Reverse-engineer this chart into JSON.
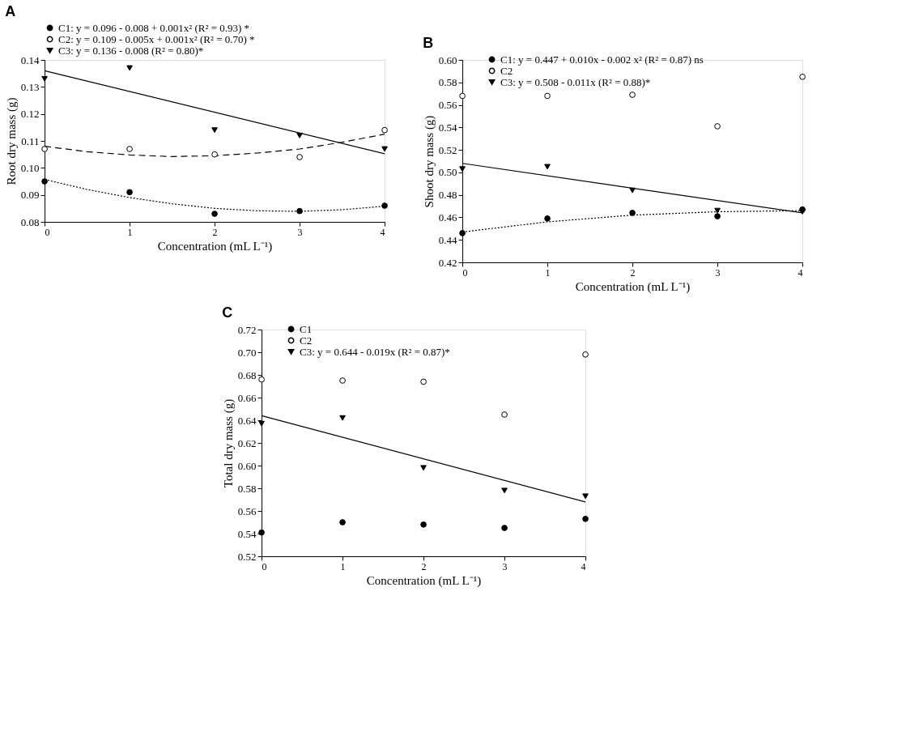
{
  "chart_data": [
    {
      "type": "scatter",
      "title": "A",
      "xlabel": "Concentration (mL L⁻¹)",
      "ylabel": "Root dry mass (g)",
      "x": [
        0,
        1,
        2,
        3,
        4
      ],
      "xlim": [
        0,
        4
      ],
      "xticks": [
        0,
        1,
        2,
        3,
        4
      ],
      "ylim": [
        0.08,
        0.14
      ],
      "yticks": [
        0.08,
        0.09,
        {
          "value": 0.1,
          "label": "0.10"
        },
        0.11,
        0.12,
        0.13,
        0.14
      ],
      "grid": false,
      "legend": "top",
      "series": [
        {
          "name": "C1: y = 0.096 - 0.008 + 0.001x² (R² = 0.93) *",
          "color": "#000000",
          "marker": "circle",
          "values": [
            0.095,
            0.091,
            0.083,
            0.084,
            0.086
          ]
        },
        {
          "name": "C2: y = 0.109 - 0.005x + 0.001x² (R² = 0.70) *",
          "color": "#ffffff",
          "marker": "circle",
          "values": [
            0.107,
            0.107,
            0.105,
            0.104,
            0.114
          ]
        },
        {
          "name": "C3: y = 0.136 - 0.008 (R² = 0.80)*",
          "color": "#000000",
          "marker": "triangle",
          "values": [
            0.133,
            0.137,
            0.114,
            0.112,
            0.107
          ]
        },
        {
          "type": "line",
          "color": "#000000",
          "line_style": "dotted",
          "x": [
            0,
            0.5,
            1,
            1.5,
            2,
            2.5,
            3,
            3.5,
            4
          ],
          "values": [
            0.0957,
            0.092,
            0.089,
            0.0867,
            0.085,
            0.0841,
            0.0839,
            0.0845,
            0.0858
          ]
        },
        {
          "type": "line",
          "color": "#000000",
          "line_style": "dashed",
          "x": [
            0,
            0.5,
            1,
            1.5,
            2,
            2.5,
            3,
            3.5,
            4
          ],
          "values": [
            0.108,
            0.106,
            0.1048,
            0.1042,
            0.1045,
            0.1055,
            0.107,
            0.1095,
            0.1125
          ]
        },
        {
          "type": "line",
          "color": "#000000",
          "line_style": "solid",
          "x": [
            0,
            4
          ],
          "values": [
            0.136,
            0.1052
          ]
        }
      ]
    },
    {
      "type": "scatter",
      "title": "B",
      "xlabel": "Concentration (mL L⁻¹)",
      "ylabel": "Shoot dry mass (g)",
      "x": [
        0,
        1,
        2,
        3,
        4
      ],
      "xlim": [
        0,
        4
      ],
      "xticks": [
        0,
        1,
        2,
        3,
        4
      ],
      "ylim": [
        0.42,
        0.6
      ],
      "yticks": [
        0.42,
        0.44,
        0.46,
        0.48,
        {
          "value": 0.5,
          "label": "0.50"
        },
        0.52,
        0.54,
        0.56,
        0.58,
        {
          "value": 0.6,
          "label": "0.60"
        }
      ],
      "grid": false,
      "legend": "top left",
      "series": [
        {
          "name": "C1: y = 0.447 + 0.010x - 0.002 x² (R² = 0.87) ns",
          "color": "#000000",
          "marker": "circle",
          "values": [
            0.446,
            0.459,
            0.464,
            0.461,
            0.467
          ]
        },
        {
          "name": "C2",
          "color": "#ffffff",
          "marker": "circle",
          "values": [
            0.568,
            0.568,
            0.569,
            0.541,
            0.585
          ]
        },
        {
          "name": "C3: y = 0.508 - 0.011x (R² = 0.88)*",
          "color": "#000000",
          "marker": "triangle",
          "values": [
            0.503,
            0.505,
            0.484,
            0.466,
            0.465
          ]
        },
        {
          "type": "line",
          "color": "#000000",
          "line_style": "dotted",
          "x": [
            0,
            1,
            2,
            3,
            4
          ],
          "values": [
            0.447,
            0.456,
            0.462,
            0.465,
            0.466
          ]
        },
        {
          "type": "line",
          "color": "#000000",
          "line_style": "solid",
          "x": [
            0,
            4
          ],
          "values": [
            0.508,
            0.464
          ]
        }
      ]
    },
    {
      "type": "scatter",
      "title": "C",
      "xlabel": "Concentration (mL L⁻¹)",
      "ylabel": "Total dry mass (g)",
      "x": [
        0,
        1,
        2,
        3,
        4
      ],
      "xlim": [
        0,
        4
      ],
      "xticks": [
        0,
        1,
        2,
        3,
        4
      ],
      "ylim": [
        0.52,
        0.72
      ],
      "yticks": [
        0.52,
        0.54,
        0.56,
        0.58,
        {
          "value": 0.6,
          "label": "0.60"
        },
        0.62,
        0.64,
        0.66,
        0.68,
        {
          "value": 0.7,
          "label": "0.70"
        },
        0.72
      ],
      "grid": false,
      "legend": "top left",
      "series": [
        {
          "name": "C1",
          "color": "#000000",
          "marker": "circle",
          "values": [
            0.541,
            0.55,
            0.548,
            0.545,
            0.553
          ]
        },
        {
          "name": "C2",
          "color": "#ffffff",
          "marker": "circle",
          "values": [
            0.676,
            0.675,
            0.674,
            0.645,
            0.698
          ]
        },
        {
          "name": "C3: y = 0.644 - 0.019x (R² = 0.87)*",
          "color": "#000000",
          "marker": "triangle",
          "values": [
            0.637,
            0.642,
            0.598,
            0.578,
            0.573
          ]
        },
        {
          "type": "line",
          "color": "#000000",
          "line_style": "solid",
          "x": [
            0,
            4
          ],
          "values": [
            0.644,
            0.568
          ]
        }
      ]
    }
  ]
}
